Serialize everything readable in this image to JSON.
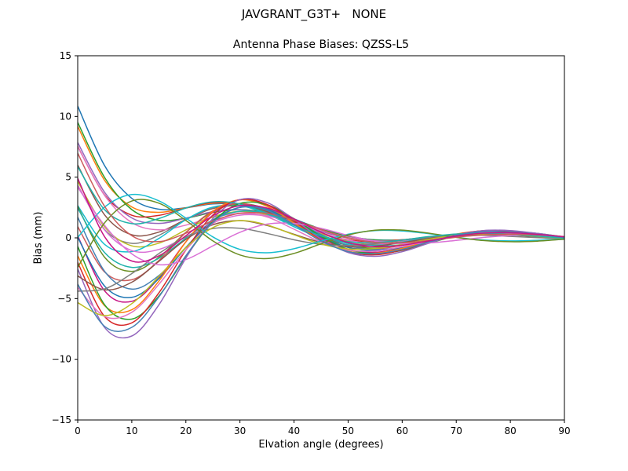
{
  "figure": {
    "background": "#ffffff",
    "spine_color": "#000000",
    "tick_color": "#000000"
  },
  "chart_data": {
    "type": "line",
    "suptitle": "JAVGRANT_G3T+   NONE",
    "title": "Antenna Phase Biases: QZSS-L5",
    "xlabel": "Elvation angle (degrees)",
    "ylabel": "Bias (mm)",
    "xlim": [
      0,
      90
    ],
    "ylim": [
      -15,
      15
    ],
    "xticks": [
      0,
      10,
      20,
      30,
      40,
      50,
      60,
      70,
      80,
      90
    ],
    "xtick_labels": [
      "0",
      "10",
      "20",
      "30",
      "40",
      "50",
      "60",
      "70",
      "80",
      "90"
    ],
    "yticks": [
      -15,
      -10,
      -5,
      0,
      5,
      10,
      15
    ],
    "ytick_labels": [
      "−15",
      "−10",
      "−5",
      "0",
      "5",
      "10",
      "15"
    ],
    "grid": false,
    "legend": "none",
    "line_width": 1.5,
    "x": [
      0,
      5,
      10,
      15,
      20,
      25,
      30,
      35,
      40,
      45,
      50,
      55,
      60,
      65,
      70,
      75,
      80,
      85,
      90
    ],
    "series": [
      {
        "name": "s01",
        "color": "#1f77b4",
        "values": [
          10.85,
          5.93,
          3.25,
          2.36,
          2.48,
          2.79,
          2.78,
          2.32,
          1.55,
          0.73,
          0.12,
          -0.16,
          -0.16,
          0.01,
          0.19,
          0.3,
          0.3,
          0.21,
          0.08
        ]
      },
      {
        "name": "s02",
        "color": "#ff7f0e",
        "values": [
          9.19,
          4.72,
          2.55,
          2.1,
          2.47,
          2.85,
          2.79,
          2.22,
          1.37,
          0.54,
          -0.02,
          -0.24,
          -0.16,
          0.04,
          0.24,
          0.33,
          0.29,
          0.18,
          0.05
        ]
      },
      {
        "name": "s03",
        "color": "#2ca02c",
        "values": [
          9.51,
          4.95,
          2.33,
          1.45,
          1.62,
          2.1,
          2.32,
          2.08,
          1.48,
          0.74,
          0.15,
          -0.18,
          -0.21,
          -0.08,
          0.12,
          0.24,
          0.27,
          0.21,
          0.1
        ]
      },
      {
        "name": "s04",
        "color": "#d62728",
        "values": [
          7.53,
          3.52,
          1.86,
          1.85,
          2.46,
          2.91,
          2.79,
          2.12,
          1.2,
          0.36,
          -0.16,
          -0.31,
          -0.16,
          0.07,
          0.28,
          0.35,
          0.29,
          0.17,
          0.03
        ]
      },
      {
        "name": "s05",
        "color": "#9467bd",
        "values": [
          7.85,
          3.74,
          1.64,
          1.19,
          1.62,
          2.16,
          2.32,
          1.99,
          1.31,
          0.55,
          -0.01,
          -0.25,
          -0.23,
          -0.04,
          0.15,
          0.27,
          0.28,
          0.19,
          0.07
        ]
      },
      {
        "name": "s06",
        "color": "#8c564b",
        "values": [
          5.99,
          1.88,
          0.25,
          0.47,
          1.51,
          2.41,
          2.64,
          2.16,
          1.26,
          0.35,
          -0.27,
          -0.48,
          -0.33,
          -0.05,
          0.23,
          0.36,
          0.33,
          0.21,
          0.05
        ]
      },
      {
        "name": "s07",
        "color": "#e377c2",
        "values": [
          7.51,
          3.48,
          1.26,
          0.66,
          1.05,
          1.68,
          2.01,
          1.85,
          1.31,
          0.62,
          0.06,
          -0.25,
          -0.26,
          -0.11,
          0.09,
          0.22,
          0.26,
          0.2,
          0.09
        ]
      },
      {
        "name": "s08",
        "color": "#7f7f7f",
        "values": [
          4.32,
          0.67,
          -0.45,
          0.21,
          1.5,
          2.47,
          2.65,
          2.06,
          1.09,
          0.16,
          -0.42,
          -0.55,
          -0.34,
          -0.01,
          0.27,
          0.38,
          0.33,
          0.18,
          0.01
        ]
      },
      {
        "name": "s09",
        "color": "#bcbd22",
        "values": [
          4.65,
          0.89,
          -0.66,
          -0.44,
          0.66,
          1.72,
          2.18,
          1.92,
          1.19,
          0.36,
          -0.25,
          -0.49,
          -0.4,
          -0.13,
          0.15,
          0.31,
          0.31,
          0.21,
          0.06
        ]
      },
      {
        "name": "s10",
        "color": "#17becf",
        "values": [
          2.66,
          -0.54,
          -1.13,
          -0.05,
          1.5,
          2.53,
          2.65,
          1.96,
          0.91,
          -0.03,
          -0.56,
          -0.62,
          -0.35,
          0.03,
          0.31,
          0.42,
          0.33,
          0.17,
          -0.01
        ]
      },
      {
        "name": "s11",
        "color": "#da70d6",
        "values": [
          4.31,
          0.64,
          -1.05,
          -0.96,
          0.09,
          1.24,
          1.87,
          1.8,
          1.21,
          0.43,
          -0.19,
          -0.48,
          -0.43,
          -0.2,
          0.08,
          0.26,
          0.3,
          0.22,
          0.08
        ]
      },
      {
        "name": "s12",
        "color": "#6b8e23",
        "values": [
          2.58,
          -1.61,
          -2.76,
          -1.61,
          0.45,
          2.16,
          2.81,
          2.38,
          1.3,
          0.14,
          -0.63,
          -0.84,
          -0.6,
          -0.16,
          0.24,
          0.45,
          0.42,
          0.25,
          0.04
        ]
      },
      {
        "name": "s13",
        "color": "#20b2aa",
        "values": [
          2.44,
          -1.22,
          -2.43,
          -1.68,
          -0.02,
          1.49,
          2.19,
          1.98,
          1.17,
          0.23,
          -0.46,
          -0.69,
          -0.55,
          -0.2,
          0.15,
          0.35,
          0.35,
          0.23,
          0.05
        ]
      },
      {
        "name": "s14",
        "color": "#cd5c5c",
        "values": [
          0.92,
          -2.82,
          -3.45,
          -1.87,
          0.44,
          2.22,
          2.82,
          2.28,
          1.12,
          -0.05,
          -0.78,
          -0.92,
          -0.61,
          -0.13,
          0.28,
          0.48,
          0.42,
          0.24,
          0.01
        ]
      },
      {
        "name": "s15",
        "color": "#4682b4",
        "values": [
          1.7,
          -2.77,
          -4.22,
          -3.11,
          -0.79,
          1.38,
          2.51,
          2.39,
          1.45,
          0.27,
          -0.62,
          -0.97,
          -0.78,
          -0.34,
          0.14,
          0.42,
          0.44,
          0.3,
          0.08
        ]
      },
      {
        "name": "s16",
        "color": "#c71585",
        "values": [
          0.17,
          -4.38,
          -5.23,
          -3.31,
          -0.33,
          2.11,
          3.14,
          2.7,
          1.4,
          -0.01,
          -0.95,
          -1.19,
          -0.85,
          -0.27,
          0.27,
          0.55,
          0.51,
          0.31,
          0.04
        ]
      },
      {
        "name": "s17",
        "color": "#1f77b4",
        "values": [
          0.04,
          -3.98,
          -4.9,
          -3.37,
          -0.79,
          1.44,
          2.51,
          2.3,
          1.28,
          0.08,
          -0.78,
          -1.04,
          -0.8,
          -0.3,
          0.17,
          0.45,
          0.45,
          0.29,
          0.05
        ]
      },
      {
        "name": "s18",
        "color": "#ff7f0e",
        "values": [
          -1.49,
          -5.59,
          -5.92,
          -3.57,
          -0.33,
          2.17,
          3.13,
          2.6,
          1.23,
          -0.2,
          -1.1,
          -1.26,
          -0.86,
          -0.23,
          0.31,
          0.58,
          0.52,
          0.29,
          0.0
        ]
      },
      {
        "name": "s19",
        "color": "#2ca02c",
        "values": [
          -0.71,
          -5.53,
          -6.69,
          -4.8,
          -1.56,
          1.34,
          2.83,
          2.72,
          1.57,
          0.12,
          -0.94,
          -1.3,
          -1.03,
          -0.43,
          0.16,
          0.52,
          0.55,
          0.36,
          0.08
        ]
      },
      {
        "name": "s20",
        "color": "#d62728",
        "values": [
          -2.03,
          -6.49,
          -7.0,
          -4.54,
          -1.0,
          1.88,
          3.14,
          2.75,
          1.38,
          -0.14,
          -1.15,
          -1.39,
          -1.0,
          -0.33,
          0.27,
          0.59,
          0.56,
          0.33,
          0.03
        ]
      },
      {
        "name": "s21",
        "color": "#9467bd",
        "values": [
          -2.57,
          -7.39,
          -8.08,
          -5.52,
          -1.67,
          1.59,
          3.15,
          2.9,
          1.53,
          -0.09,
          -1.2,
          -1.52,
          -1.14,
          -0.43,
          0.23,
          0.6,
          0.6,
          0.37,
          0.06
        ]
      },
      {
        "name": "s22",
        "color": "#8c564b",
        "values": [
          -3.14,
          -4.28,
          -3.65,
          -1.94,
          -0.13,
          1.08,
          1.42,
          1.02,
          0.29,
          -0.37,
          -0.71,
          -0.68,
          -0.39,
          -0.05,
          0.21,
          0.3,
          0.23,
          0.09,
          -0.04
        ]
      },
      {
        "name": "s23",
        "color": "#e377c2",
        "values": [
          -4.08,
          -6.48,
          -6.13,
          -3.83,
          -0.99,
          1.17,
          2.05,
          1.72,
          0.71,
          -0.35,
          -1.0,
          -1.08,
          -0.73,
          -0.21,
          0.21,
          0.43,
          0.39,
          0.21,
          -0.01
        ]
      },
      {
        "name": "s24",
        "color": "#7f7f7f",
        "values": [
          -4.39,
          -4.2,
          -2.94,
          -1.3,
          0.07,
          0.77,
          0.79,
          0.37,
          -0.16,
          -0.54,
          -0.63,
          -0.47,
          -0.2,
          0.06,
          0.19,
          0.21,
          0.12,
          0.01,
          -0.08
        ]
      },
      {
        "name": "s25",
        "color": "#bcbd22",
        "values": [
          -5.34,
          -6.4,
          -5.42,
          -3.19,
          -0.8,
          0.85,
          1.42,
          1.06,
          0.25,
          -0.51,
          -0.91,
          -0.88,
          -0.54,
          -0.11,
          0.2,
          0.34,
          0.27,
          0.12,
          -0.04
        ]
      },
      {
        "name": "s26",
        "color": "#17becf",
        "values": [
          0.03,
          2.54,
          3.57,
          3.05,
          1.63,
          0.08,
          -0.95,
          -1.23,
          -0.89,
          -0.26,
          0.3,
          0.6,
          0.57,
          0.34,
          0.04,
          -0.18,
          -0.25,
          -0.2,
          -0.09
        ]
      },
      {
        "name": "s27",
        "color": "#da70d6",
        "values": [
          4.16,
          1.01,
          -1.32,
          -2.21,
          -1.79,
          -0.66,
          0.46,
          1.13,
          1.19,
          0.78,
          0.2,
          -0.27,
          -0.48,
          -0.42,
          -0.21,
          0.03,
          0.19,
          0.23,
          0.05
        ]
      },
      {
        "name": "s28",
        "color": "#6b8e23",
        "values": [
          -2.43,
          1.25,
          3.03,
          2.86,
          1.43,
          -0.25,
          -1.41,
          -1.71,
          -1.28,
          -0.49,
          0.23,
          0.63,
          0.64,
          0.38,
          0.04,
          -0.22,
          -0.32,
          -0.27,
          -0.11
        ]
      },
      {
        "name": "s29",
        "color": "#20b2aa",
        "values": [
          5.86,
          2.31,
          1.17,
          1.59,
          2.46,
          2.97,
          2.79,
          2.03,
          1.03,
          0.17,
          -0.32,
          -0.38,
          -0.18,
          0.11,
          0.32,
          0.38,
          0.3,
          0.14,
          -0.01
        ]
      },
      {
        "name": "s30",
        "color": "#cd5c5c",
        "values": [
          6.97,
          2.58,
          0.18,
          -0.31,
          0.38,
          1.39,
          2.02,
          2.01,
          1.46,
          0.68,
          0.0,
          -0.38,
          -0.41,
          -0.22,
          0.05,
          0.24,
          0.3,
          0.24,
          0.11
        ]
      },
      {
        "name": "s31",
        "color": "#4682b4",
        "values": [
          -3.83,
          -7.3,
          -7.37,
          -4.87,
          -1.47,
          1.27,
          2.52,
          2.26,
          1.08,
          -0.25,
          -1.13,
          -1.31,
          -0.95,
          -0.33,
          0.21,
          0.51,
          0.49,
          0.29,
          0.02
        ]
      },
      {
        "name": "s32",
        "color": "#c71585",
        "values": [
          4.9,
          0.08,
          -1.91,
          -1.48,
          0.18,
          1.82,
          2.65,
          2.46,
          1.56,
          0.46,
          -0.38,
          -0.73,
          -0.61,
          -0.24,
          0.15,
          0.39,
          0.42,
          0.29,
          0.09
        ]
      }
    ]
  }
}
